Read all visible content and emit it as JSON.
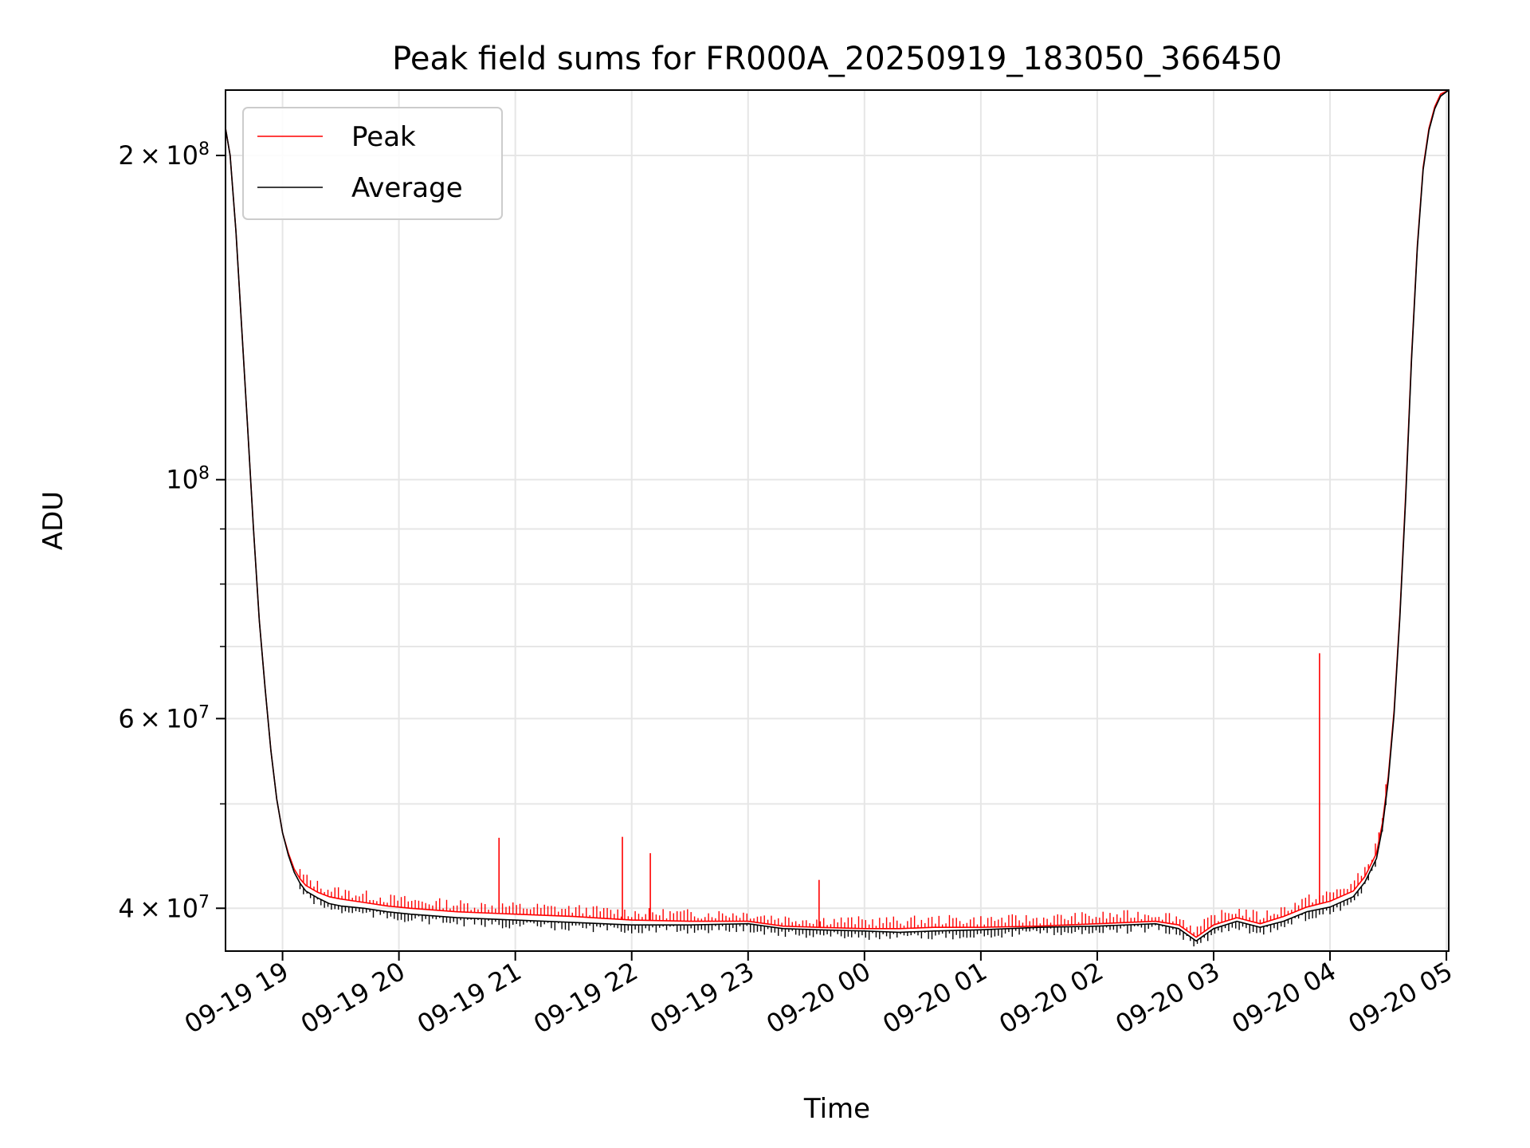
{
  "chart_data": {
    "type": "line",
    "title": "Peak field sums for FR000A_20250919_183050_366450",
    "xlabel": "Time",
    "ylabel": "ADU",
    "yscale": "log",
    "ylim": [
      36500000,
      230000000
    ],
    "xlim_hours": [
      -0.49,
      10.02
    ],
    "x_unit": "hours since 2025-09-19 19:00",
    "grid": true,
    "legend_position": "upper left",
    "x_ticks": [
      {
        "hours": 0,
        "label": "09-19 19"
      },
      {
        "hours": 1,
        "label": "09-19 20"
      },
      {
        "hours": 2,
        "label": "09-19 21"
      },
      {
        "hours": 3,
        "label": "09-19 22"
      },
      {
        "hours": 4,
        "label": "09-19 23"
      },
      {
        "hours": 5,
        "label": "09-20 00"
      },
      {
        "hours": 6,
        "label": "09-20 01"
      },
      {
        "hours": 7,
        "label": "09-20 02"
      },
      {
        "hours": 8,
        "label": "09-20 03"
      },
      {
        "hours": 9,
        "label": "09-20 04"
      },
      {
        "hours": 10,
        "label": "09-20 05"
      }
    ],
    "y_major_ticks": [
      {
        "value": 40000000,
        "mant": "4",
        "exp": "7"
      },
      {
        "value": 60000000,
        "mant": "6",
        "exp": "7"
      },
      {
        "value": 100000000,
        "mant": "",
        "exp": "8"
      },
      {
        "value": 200000000,
        "mant": "2",
        "exp": "8"
      }
    ],
    "y_minor_ticks": [
      50000000,
      70000000,
      80000000,
      90000000
    ],
    "series": [
      {
        "name": "Peak",
        "color": "#ff0000",
        "x": [
          -0.49,
          -0.45,
          -0.4,
          -0.35,
          -0.3,
          -0.25,
          -0.2,
          -0.15,
          -0.1,
          -0.05,
          0.0,
          0.05,
          0.1,
          0.15,
          0.2,
          0.3,
          0.4,
          0.5,
          0.7,
          0.9,
          1.1,
          1.5,
          2.0,
          2.5,
          3.0,
          3.5,
          4.0,
          4.3,
          4.6,
          5.0,
          5.3,
          5.6,
          6.0,
          6.5,
          7.0,
          7.5,
          7.7,
          7.85,
          8.0,
          8.2,
          8.4,
          8.6,
          8.8,
          9.0,
          9.2,
          9.3,
          9.4,
          9.45,
          9.5,
          9.55,
          9.6,
          9.65,
          9.7,
          9.75,
          9.8,
          9.85,
          9.9,
          9.95,
          10.02
        ],
        "y": [
          212000000,
          200000000,
          170000000,
          138000000,
          112000000,
          90000000,
          74000000,
          64000000,
          56000000,
          50500000,
          47000000,
          45000000,
          43500000,
          42600000,
          42000000,
          41400000,
          41000000,
          40800000,
          40500000,
          40200000,
          40000000,
          39700000,
          39500000,
          39300000,
          39000000,
          38900000,
          38900000,
          38500000,
          38400000,
          38300000,
          38300000,
          38400000,
          38400000,
          38500000,
          38700000,
          38900000,
          38600000,
          37600000,
          38600000,
          39200000,
          38700000,
          39300000,
          40100000,
          40600000,
          41500000,
          42800000,
          45000000,
          48000000,
          53000000,
          61000000,
          75000000,
          97000000,
          130000000,
          165000000,
          195000000,
          212000000,
          222000000,
          228000000,
          230000000
        ]
      },
      {
        "name": "Average",
        "color": "#000000",
        "x": [
          -0.49,
          -0.45,
          -0.4,
          -0.35,
          -0.3,
          -0.25,
          -0.2,
          -0.15,
          -0.1,
          -0.05,
          0.0,
          0.05,
          0.1,
          0.15,
          0.2,
          0.3,
          0.4,
          0.5,
          0.7,
          0.9,
          1.1,
          1.5,
          2.0,
          2.5,
          3.0,
          3.5,
          4.0,
          4.3,
          4.6,
          5.0,
          5.3,
          5.6,
          6.0,
          6.5,
          7.0,
          7.5,
          7.7,
          7.85,
          8.0,
          8.2,
          8.4,
          8.6,
          8.8,
          9.0,
          9.2,
          9.3,
          9.4,
          9.45,
          9.5,
          9.55,
          9.6,
          9.65,
          9.7,
          9.75,
          9.8,
          9.85,
          9.9,
          9.95,
          10.02
        ],
        "y": [
          212000000,
          200000000,
          170000000,
          138000000,
          112000000,
          90000000,
          74000000,
          64000000,
          56000000,
          50500000,
          47000000,
          44800000,
          43200000,
          42200000,
          41500000,
          40900000,
          40400000,
          40200000,
          40000000,
          39700000,
          39500000,
          39200000,
          39000000,
          38800000,
          38600000,
          38600000,
          38700000,
          38300000,
          38200000,
          38100000,
          38000000,
          38100000,
          38200000,
          38400000,
          38500000,
          38700000,
          38300000,
          37300000,
          38300000,
          38900000,
          38400000,
          38900000,
          39700000,
          40100000,
          41000000,
          42300000,
          44500000,
          47500000,
          52500000,
          60500000,
          74500000,
          96000000,
          129000000,
          164000000,
          194000000,
          211000000,
          221000000,
          227000000,
          230000000
        ]
      }
    ],
    "spikes": [
      {
        "series": "Peak",
        "x": 1.86,
        "y": 46500000
      },
      {
        "series": "Peak",
        "x": 2.92,
        "y": 46600000
      },
      {
        "series": "Peak",
        "x": 3.16,
        "y": 45000000
      },
      {
        "series": "Peak",
        "x": 4.61,
        "y": 42500000
      },
      {
        "series": "Peak",
        "x": 8.91,
        "y": 69000000
      }
    ]
  }
}
